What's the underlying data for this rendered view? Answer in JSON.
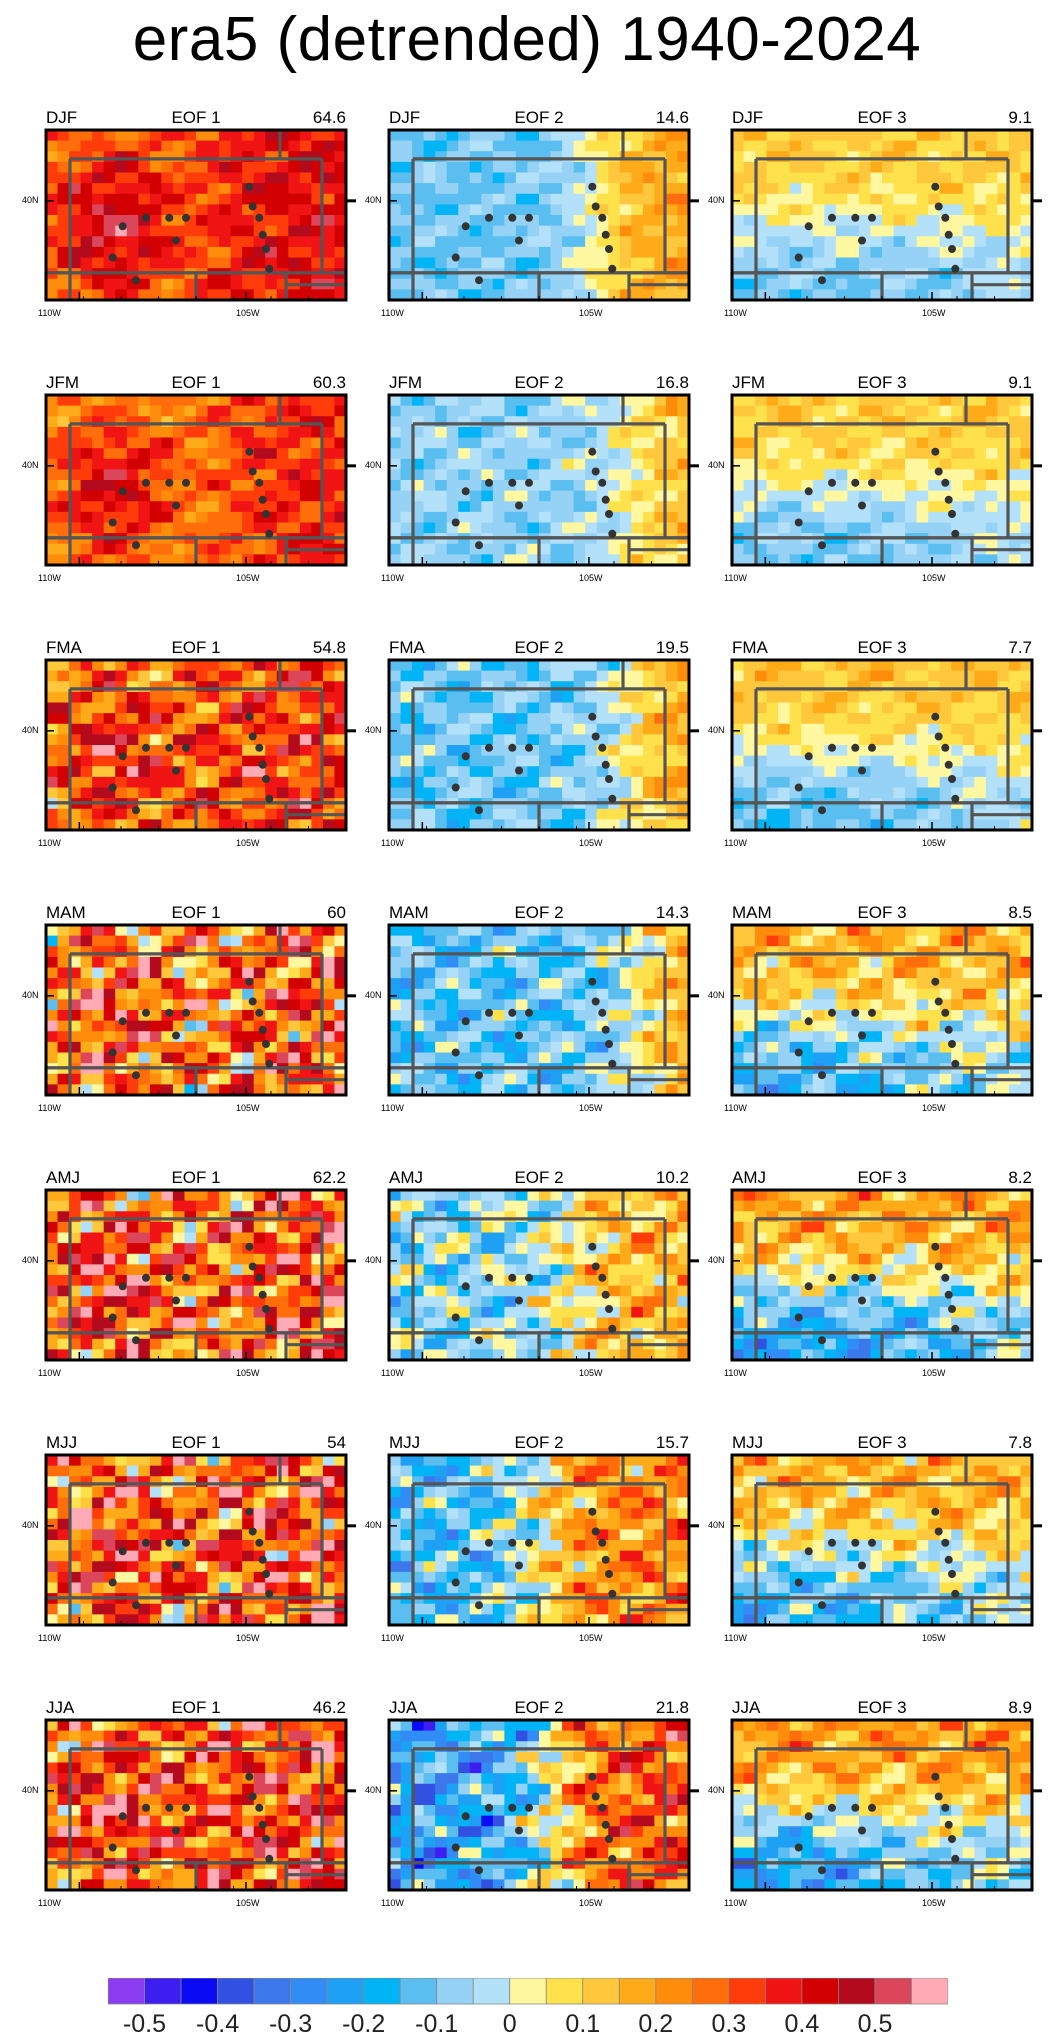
{
  "title": "era5 (detrended) 1940-2024",
  "chart_data": {
    "type": "heatmap",
    "title": "era5 (detrended) 1940-2024",
    "rows": [
      "DJF",
      "JFM",
      "FMA",
      "MAM",
      "AMJ",
      "MJJ",
      "JJA"
    ],
    "columns": [
      "EOF 1",
      "EOF 2",
      "EOF 3"
    ],
    "variance_explained": [
      [
        "64.6",
        "14.6",
        "9.1"
      ],
      [
        "60.3",
        "16.8",
        "9.1"
      ],
      [
        "54.8",
        "19.5",
        "7.7"
      ],
      [
        "60",
        "14.3",
        "8.5"
      ],
      [
        "62.2",
        "10.2",
        "8.2"
      ],
      [
        "54",
        "15.7",
        "7.8"
      ],
      [
        "46.2",
        "21.8",
        "8.9"
      ]
    ],
    "x_ticks": {
      "left": "110W",
      "middle": "105W"
    },
    "y_tick": "40N",
    "xlim": [
      -111,
      -102
    ],
    "ylim": [
      36.5,
      42.5
    ],
    "station_points": [
      [
        -108.7,
        39.1
      ],
      [
        -108.0,
        39.4
      ],
      [
        -107.3,
        39.4
      ],
      [
        -107.1,
        38.6
      ],
      [
        -106.8,
        39.4
      ],
      [
        -109.0,
        38.0
      ],
      [
        -104.9,
        40.5
      ],
      [
        -104.8,
        39.8
      ],
      [
        -104.6,
        39.4
      ],
      [
        -104.5,
        38.8
      ],
      [
        -104.4,
        38.3
      ],
      [
        -104.3,
        37.6
      ],
      [
        -108.3,
        37.2
      ]
    ],
    "colorbar": {
      "levels": [
        "-0.5",
        "-0.4",
        "-0.3",
        "-0.2",
        "-0.1",
        "0",
        "0.1",
        "0.2",
        "0.3",
        "0.4",
        "0.5"
      ],
      "colors": [
        "#8c3cf0",
        "#3c1ef0",
        "#0a0af5",
        "#3250e1",
        "#3c78eb",
        "#328cf5",
        "#1ea0f5",
        "#00b4f5",
        "#5abef0",
        "#96d2f5",
        "#b4e1fa",
        "#fff8a0",
        "#ffe14b",
        "#ffc83c",
        "#ffaa19",
        "#ff8c0a",
        "#ff6e0a",
        "#ff3c0a",
        "#f01414",
        "#d20000",
        "#b40a1e",
        "#dc465a",
        "#ffaab4"
      ]
    },
    "patterns": [
      [
        [
          0.45,
          0.15,
          0.55
        ],
        [
          -0.2,
          0.1,
          0.7
        ],
        [
          -0.1,
          0.1,
          0.8
        ]
      ],
      [
        [
          0.4,
          0.15,
          0.6
        ],
        [
          -0.15,
          0.12,
          0.8
        ],
        [
          -0.1,
          0.1,
          0.75
        ]
      ],
      [
        [
          0.38,
          0.3,
          0.5
        ],
        [
          -0.2,
          0.15,
          0.8
        ],
        [
          -0.12,
          0.1,
          0.7
        ]
      ],
      [
        [
          0.35,
          0.45,
          0.65
        ],
        [
          -0.22,
          0.2,
          0.85
        ],
        [
          -0.15,
          0.2,
          0.6
        ]
      ],
      [
        [
          0.4,
          0.45,
          0.65
        ],
        [
          -0.15,
          0.25,
          0.6
        ],
        [
          -0.18,
          0.2,
          0.7
        ]
      ],
      [
        [
          0.38,
          0.45,
          0.55
        ],
        [
          -0.25,
          0.25,
          0.5
        ],
        [
          -0.15,
          0.2,
          0.6
        ]
      ],
      [
        [
          0.4,
          0.4,
          0.5
        ],
        [
          -0.35,
          0.3,
          0.55
        ],
        [
          -0.2,
          0.2,
          0.5
        ]
      ]
    ]
  }
}
